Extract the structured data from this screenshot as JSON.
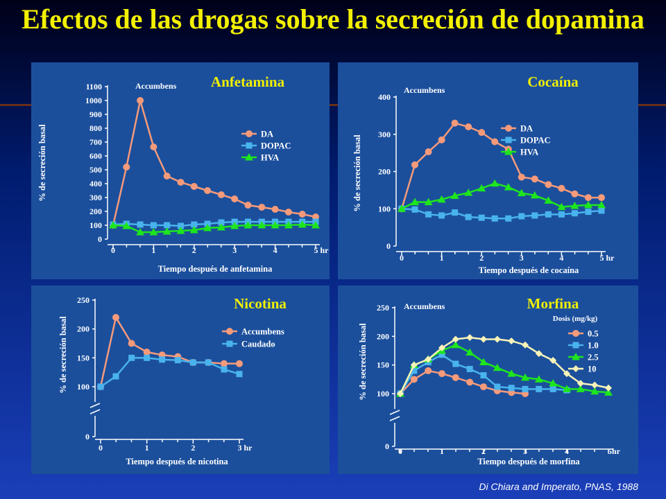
{
  "title": "Efectos de las drogas sobre la secreción de dopamina",
  "citation": "Di Chiara and Imperato, PNAS, 1988",
  "colors": {
    "title": "#f2f000",
    "panel": "#1b4f9c",
    "text": "#ffffff",
    "DA": "#f59a7a",
    "DOPAC": "#49b3ee",
    "HVA": "#1ee61e",
    "dose_0_5": "#f59a7a",
    "dose_1_0": "#49b3ee",
    "dose_2_5": "#1ee61e",
    "dose_10": "#f8f3b8"
  },
  "chart_data": [
    {
      "type": "line",
      "title": "Anfetamina",
      "region_label": "Accumbens",
      "xlabel": "Tiempo después de anfetamina",
      "ylabel": "% de secreción basal",
      "xlim": [
        0,
        5
      ],
      "ylim": [
        0,
        1100
      ],
      "x_ticks": [
        "0",
        "1",
        "2",
        "3",
        "4",
        "5 hr"
      ],
      "y_ticks": [
        "0",
        "100",
        "200",
        "300",
        "400",
        "500",
        "600",
        "700",
        "800",
        "900",
        "1000",
        "1100"
      ],
      "legend": [
        "DA",
        "DOPAC",
        "HVA"
      ],
      "x": [
        0,
        0.33,
        0.67,
        1.0,
        1.33,
        1.67,
        2.0,
        2.33,
        2.67,
        3.0,
        3.33,
        3.67,
        4.0,
        4.33,
        4.67,
        5.0
      ],
      "series": [
        {
          "name": "DA",
          "values": [
            100,
            520,
            1000,
            665,
            455,
            410,
            380,
            350,
            320,
            290,
            245,
            230,
            215,
            195,
            180,
            160
          ]
        },
        {
          "name": "DOPAC",
          "values": [
            105,
            110,
            105,
            100,
            100,
            95,
            105,
            110,
            120,
            125,
            125,
            125,
            125,
            125,
            125,
            125
          ]
        },
        {
          "name": "HVA",
          "values": [
            100,
            95,
            50,
            50,
            55,
            60,
            65,
            80,
            85,
            95,
            100,
            100,
            100,
            100,
            105,
            100
          ]
        }
      ]
    },
    {
      "type": "line",
      "title": "Cocaína",
      "region_label": "Accumbens",
      "xlabel": "Tiempo después de cocaína",
      "ylabel": "% de secreción basal",
      "xlim": [
        0,
        5
      ],
      "ylim": [
        0,
        400
      ],
      "x_ticks": [
        "0",
        "1",
        "2",
        "3",
        "4",
        "5 hr"
      ],
      "y_ticks": [
        "0",
        "100",
        "200",
        "300",
        "400"
      ],
      "legend": [
        "DA",
        "DOPAC",
        "HVA"
      ],
      "x": [
        0,
        0.33,
        0.67,
        1.0,
        1.33,
        1.67,
        2.0,
        2.33,
        2.67,
        3.0,
        3.33,
        3.67,
        4.0,
        4.33,
        4.67,
        5.0
      ],
      "series": [
        {
          "name": "DA",
          "values": [
            100,
            218,
            253,
            285,
            330,
            320,
            305,
            280,
            260,
            185,
            180,
            165,
            155,
            140,
            130,
            130
          ]
        },
        {
          "name": "DOPAC",
          "values": [
            100,
            98,
            85,
            82,
            90,
            78,
            76,
            74,
            74,
            80,
            82,
            85,
            85,
            88,
            92,
            95
          ]
        },
        {
          "name": "HVA",
          "values": [
            100,
            118,
            118,
            125,
            135,
            143,
            155,
            168,
            158,
            142,
            136,
            122,
            105,
            108,
            110,
            110
          ]
        }
      ]
    },
    {
      "type": "line",
      "title": "Nicotina",
      "xlabel": "Tiempo después de nicotina",
      "ylabel": "% de secreción basal",
      "xlim": [
        0,
        3
      ],
      "ylim": [
        0,
        250
      ],
      "x_ticks": [
        "0",
        "1",
        "2",
        "3 hr"
      ],
      "y_ticks": [
        "0",
        "100",
        "150",
        "200",
        "250"
      ],
      "axis_break": true,
      "legend": [
        "Accumbens",
        "Caudado"
      ],
      "x": [
        0,
        0.33,
        0.67,
        1.0,
        1.33,
        1.67,
        2.0,
        2.33,
        2.67,
        3.0
      ],
      "series": [
        {
          "name": "Accumbens",
          "values": [
            100,
            220,
            175,
            160,
            155,
            152,
            142,
            142,
            140,
            140
          ]
        },
        {
          "name": "Caudado",
          "values": [
            100,
            118,
            150,
            150,
            147,
            146,
            142,
            142,
            130,
            122
          ]
        }
      ]
    },
    {
      "type": "line",
      "title": "Morfina",
      "region_label": "Accumbens",
      "legend_title": "Dosis (mg/kg)",
      "xlabel": "Tiempo después de morfina",
      "ylabel": "% de secreción basal",
      "xlim": [
        0,
        5
      ],
      "ylim": [
        0,
        250
      ],
      "x_ticks": [
        "0",
        "1",
        "2",
        "3",
        "4",
        "5hr"
      ],
      "y_ticks": [
        "0",
        "100",
        "150",
        "200",
        "250"
      ],
      "axis_break": true,
      "legend": [
        "0.5",
        "1.0",
        "2.5",
        "10"
      ],
      "series": [
        {
          "name": "0.5",
          "x": [
            0,
            0.33,
            0.67,
            1.0,
            1.33,
            1.67,
            2.0,
            2.33,
            2.67,
            3.0
          ],
          "values": [
            100,
            125,
            140,
            135,
            128,
            120,
            112,
            105,
            102,
            100
          ]
        },
        {
          "name": "1.0",
          "x": [
            0,
            0.33,
            0.67,
            1.0,
            1.33,
            1.67,
            2.0,
            2.33,
            2.67,
            3.0,
            3.33,
            3.67,
            4.0
          ],
          "values": [
            100,
            140,
            155,
            168,
            152,
            143,
            132,
            112,
            110,
            108,
            108,
            108,
            106
          ]
        },
        {
          "name": "2.5",
          "x": [
            0,
            0.33,
            0.67,
            1.0,
            1.33,
            1.67,
            2.0,
            2.33,
            2.67,
            3.0,
            3.33,
            3.67,
            4.0,
            4.33,
            4.67,
            5.0
          ],
          "values": [
            100,
            150,
            160,
            175,
            185,
            172,
            155,
            145,
            135,
            128,
            125,
            118,
            108,
            108,
            104,
            102
          ]
        },
        {
          "name": "10",
          "x": [
            0,
            0.33,
            0.67,
            1.0,
            1.33,
            1.67,
            2.0,
            2.33,
            2.67,
            3.0,
            3.33,
            3.67,
            4.0,
            4.33,
            4.67,
            5.0
          ],
          "values": [
            100,
            150,
            160,
            180,
            195,
            198,
            195,
            195,
            192,
            185,
            170,
            158,
            135,
            118,
            115,
            110
          ]
        }
      ]
    }
  ]
}
